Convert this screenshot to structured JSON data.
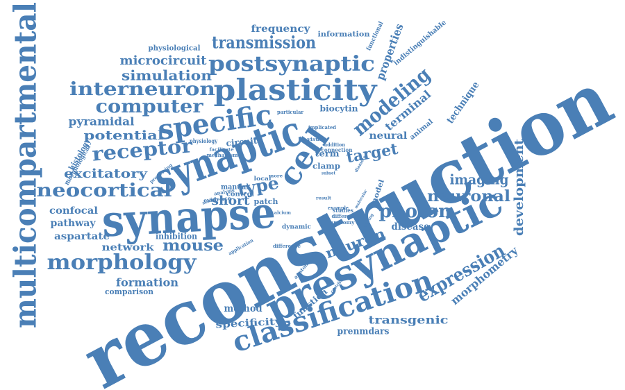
{
  "word_color": "#4a7fb6",
  "words": [
    {
      "text": "reconstruction"
    },
    {
      "text": "multicompartmental"
    },
    {
      "text": "synapse"
    },
    {
      "text": "synaptic"
    },
    {
      "text": "presynaptic"
    },
    {
      "text": "plasticity"
    },
    {
      "text": "specific"
    },
    {
      "text": "cell"
    },
    {
      "text": "classification"
    },
    {
      "text": "morphology"
    },
    {
      "text": "postsynaptic"
    },
    {
      "text": "transmission"
    },
    {
      "text": "interneuron"
    },
    {
      "text": "computer"
    },
    {
      "text": "receptor"
    },
    {
      "text": "neocortical"
    },
    {
      "text": "modeling"
    },
    {
      "text": "expression"
    },
    {
      "text": "photon"
    },
    {
      "text": "neuronal"
    },
    {
      "text": "neuron"
    },
    {
      "text": "mouse"
    },
    {
      "text": "simulation"
    },
    {
      "text": "microcircuit"
    },
    {
      "text": "potential"
    },
    {
      "text": "excitatory"
    },
    {
      "text": "pyramidal"
    },
    {
      "text": "type"
    },
    {
      "text": "target"
    },
    {
      "text": "short"
    },
    {
      "text": "imaging"
    },
    {
      "text": "development"
    },
    {
      "text": "morphometry"
    },
    {
      "text": "transgenic"
    },
    {
      "text": "specificity"
    },
    {
      "text": "formation"
    },
    {
      "text": "properties"
    },
    {
      "text": "terminal"
    },
    {
      "text": "technique"
    },
    {
      "text": "neural"
    },
    {
      "text": "frequency"
    },
    {
      "text": "prenmdars"
    },
    {
      "text": "method"
    },
    {
      "text": "function"
    },
    {
      "text": "disease"
    },
    {
      "text": "confocal"
    },
    {
      "text": "pathway"
    },
    {
      "text": "aspartate"
    },
    {
      "text": "network"
    },
    {
      "text": "inhibition"
    },
    {
      "text": "comparison"
    },
    {
      "text": "biocytin"
    },
    {
      "text": "term"
    },
    {
      "text": "clamp"
    },
    {
      "text": "patch"
    },
    {
      "text": "circuit"
    },
    {
      "text": "information"
    },
    {
      "text": "physiological"
    },
    {
      "text": "histology"
    },
    {
      "text": "morphological"
    },
    {
      "text": "indistinguishable"
    },
    {
      "text": "functional"
    },
    {
      "text": "animal"
    },
    {
      "text": "model"
    },
    {
      "text": "local"
    },
    {
      "text": "manual"
    },
    {
      "text": "control"
    },
    {
      "text": "evidence"
    },
    {
      "text": "analysis"
    },
    {
      "text": "dynamic"
    },
    {
      "text": "studies"
    },
    {
      "text": "different"
    },
    {
      "text": "anatomy"
    },
    {
      "text": "example"
    },
    {
      "text": "application"
    },
    {
      "text": "difference"
    },
    {
      "text": "anatomical"
    },
    {
      "text": "connection"
    },
    {
      "text": "mechanism"
    },
    {
      "text": "physiology"
    },
    {
      "text": "processing"
    },
    {
      "text": "particular"
    },
    {
      "text": "implicated"
    },
    {
      "text": "addition"
    },
    {
      "text": "visual"
    },
    {
      "text": "facilitate"
    },
    {
      "text": "diameter"
    },
    {
      "text": "molecular"
    },
    {
      "text": "calcium"
    },
    {
      "text": "tracing"
    },
    {
      "text": "result"
    },
    {
      "text": "more"
    },
    {
      "text": "subset"
    },
    {
      "text": "number"
    },
    {
      "text": "contribute"
    }
  ]
}
